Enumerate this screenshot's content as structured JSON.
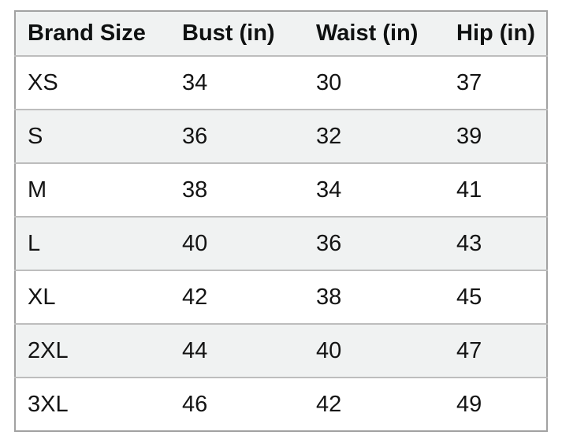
{
  "size_chart": {
    "columns": [
      "Brand Size",
      "Bust (in)",
      "Waist (in)",
      "Hip (in)"
    ],
    "rows": [
      [
        "XS",
        "34",
        "30",
        "37"
      ],
      [
        "S",
        "36",
        "32",
        "39"
      ],
      [
        "M",
        "38",
        "34",
        "41"
      ],
      [
        "L",
        "40",
        "36",
        "43"
      ],
      [
        "XL",
        "42",
        "38",
        "45"
      ],
      [
        "2XL",
        "44",
        "40",
        "47"
      ],
      [
        "3XL",
        "46",
        "42",
        "49"
      ]
    ]
  },
  "colors": {
    "header_bg": "#f0f2f2",
    "stripe_bg": "#f0f2f2",
    "white_bg": "#ffffff",
    "outer_border": "#a2a2a2",
    "row_border": "#bdbdbd",
    "text": "#141414"
  }
}
